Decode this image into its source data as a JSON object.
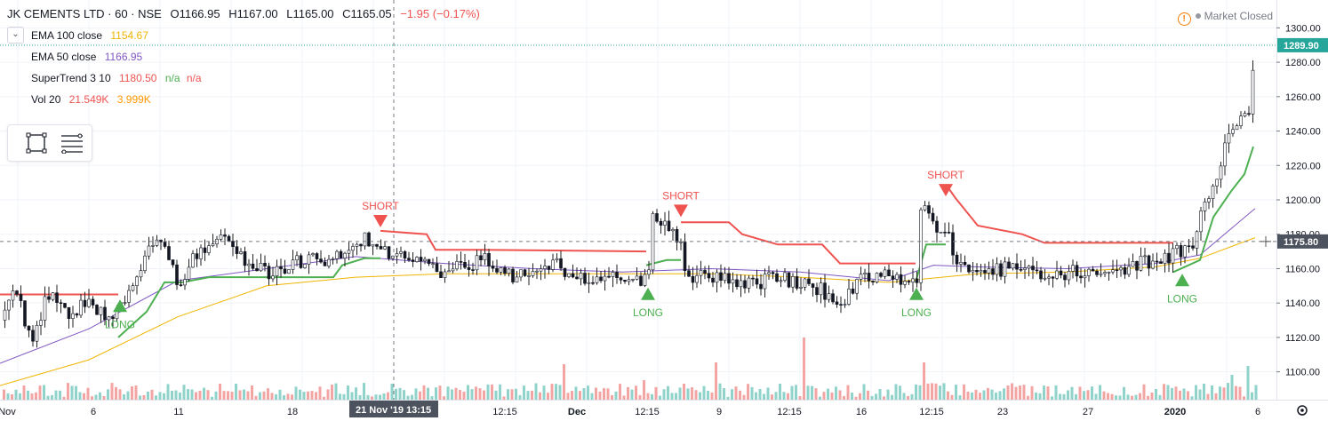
{
  "header": {
    "symbol": "JK CEMENTS LTD · 60 · NSE",
    "open": "O1166.95",
    "high": "H1167.00",
    "low": "L1165.00",
    "close": "C1165.05",
    "change": "−1.95 (−0.17%)"
  },
  "indicators": [
    {
      "name": "EMA 100 close",
      "value": "1154.67",
      "color": "#f0b400"
    },
    {
      "name": "EMA 50 close",
      "value": "1166.95",
      "color": "#7e57c2"
    },
    {
      "name": "SuperTrend 3 10",
      "value": "1180.50",
      "v2": "n/a",
      "v3": "n/a",
      "color": "#ef5350",
      "color2": "#4caf50"
    },
    {
      "name": "Vol 20",
      "value": "21.549K",
      "v2": "3.999K",
      "color": "#ef5350",
      "color2": "#ff9800"
    }
  ],
  "market_status": "Market Closed",
  "price_labels": {
    "last": "1289.90",
    "crosshair": "1175.80"
  },
  "crosshair_time": {
    "date": "21 Nov '19",
    "time": "13:15"
  },
  "colors": {
    "up": "#26a69a",
    "down": "#ef5350",
    "vol_up": "#8fd3cb",
    "vol_down": "#f3a5a3",
    "ema100": "#f0b400",
    "ema50": "#7e57c2",
    "st_up": "#4caf50",
    "st_down": "#ef5350",
    "last_price": "#26a69a",
    "crosshair_label": "#4c525e"
  },
  "chart_data": {
    "type": "candlestick",
    "y_axis": {
      "min": 1090,
      "max": 1310,
      "ticks": [
        1100,
        1120,
        1140,
        1160,
        1180,
        1200,
        1220,
        1240,
        1260,
        1280,
        1300
      ]
    },
    "x_labels": [
      "Nov",
      "6",
      "11",
      "18",
      "21 Nov '19",
      "13:15",
      "12:15",
      "Dec",
      "12:15",
      "9",
      "12:15",
      "16",
      "12:15",
      "23",
      "27",
      "2020",
      "6"
    ],
    "signals": [
      {
        "label": "LONG",
        "price": 1142
      },
      {
        "label": "SHORT",
        "price": 1184
      },
      {
        "label": "LONG",
        "price": 1149
      },
      {
        "label": "SHORT",
        "price": 1190
      },
      {
        "label": "LONG",
        "price": 1149
      },
      {
        "label": "SHORT",
        "price": 1202
      },
      {
        "label": "LONG",
        "price": 1157
      }
    ],
    "price_path": [
      [
        0,
        1130
      ],
      [
        15,
        1150
      ],
      [
        35,
        1115
      ],
      [
        50,
        1145
      ],
      [
        75,
        1135
      ],
      [
        100,
        1140
      ],
      [
        125,
        1132
      ],
      [
        140,
        1145
      ],
      [
        160,
        1162
      ],
      [
        168,
        1178
      ],
      [
        185,
        1172
      ],
      [
        200,
        1150
      ],
      [
        215,
        1165
      ],
      [
        235,
        1172
      ],
      [
        255,
        1178
      ],
      [
        275,
        1165
      ],
      [
        300,
        1158
      ],
      [
        330,
        1163
      ],
      [
        360,
        1165
      ],
      [
        390,
        1172
      ],
      [
        410,
        1178
      ],
      [
        425,
        1175
      ],
      [
        440,
        1166
      ],
      [
        470,
        1165
      ],
      [
        495,
        1158
      ],
      [
        520,
        1163
      ],
      [
        550,
        1165
      ],
      [
        575,
        1155
      ],
      [
        600,
        1158
      ],
      [
        625,
        1162
      ],
      [
        650,
        1155
      ],
      [
        680,
        1156
      ],
      [
        710,
        1155
      ],
      [
        728,
        1152
      ],
      [
        734,
        1195
      ],
      [
        750,
        1180
      ],
      [
        765,
        1178
      ],
      [
        770,
        1155
      ],
      [
        790,
        1158
      ],
      [
        810,
        1155
      ],
      [
        840,
        1150
      ],
      [
        870,
        1155
      ],
      [
        900,
        1152
      ],
      [
        920,
        1148
      ],
      [
        945,
        1140
      ],
      [
        970,
        1155
      ],
      [
        1000,
        1155
      ],
      [
        1030,
        1155
      ],
      [
        1035,
        1200
      ],
      [
        1050,
        1185
      ],
      [
        1065,
        1180
      ],
      [
        1075,
        1162
      ],
      [
        1100,
        1156
      ],
      [
        1130,
        1160
      ],
      [
        1160,
        1158
      ],
      [
        1190,
        1157
      ],
      [
        1220,
        1159
      ],
      [
        1250,
        1158
      ],
      [
        1280,
        1163
      ],
      [
        1300,
        1165
      ],
      [
        1325,
        1170
      ],
      [
        1340,
        1175
      ],
      [
        1355,
        1198
      ],
      [
        1365,
        1212
      ],
      [
        1380,
        1235
      ],
      [
        1395,
        1245
      ],
      [
        1405,
        1255
      ],
      [
        1410,
        1290
      ]
    ],
    "ema100": [
      [
        0,
        1092
      ],
      [
        100,
        1107
      ],
      [
        200,
        1132
      ],
      [
        300,
        1150
      ],
      [
        400,
        1155
      ],
      [
        500,
        1157
      ],
      [
        600,
        1157
      ],
      [
        700,
        1157
      ],
      [
        800,
        1157
      ],
      [
        900,
        1155
      ],
      [
        1000,
        1152
      ],
      [
        1100,
        1157
      ],
      [
        1200,
        1158
      ],
      [
        1300,
        1161
      ],
      [
        1350,
        1166
      ],
      [
        1412,
        1178
      ]
    ],
    "ema50": [
      [
        0,
        1105
      ],
      [
        100,
        1125
      ],
      [
        200,
        1153
      ],
      [
        300,
        1160
      ],
      [
        400,
        1167
      ],
      [
        500,
        1163
      ],
      [
        600,
        1160
      ],
      [
        700,
        1158
      ],
      [
        800,
        1160
      ],
      [
        900,
        1158
      ],
      [
        1000,
        1153
      ],
      [
        1050,
        1162
      ],
      [
        1100,
        1161
      ],
      [
        1200,
        1160
      ],
      [
        1300,
        1163
      ],
      [
        1350,
        1168
      ],
      [
        1412,
        1195
      ]
    ],
    "supertrend": [
      {
        "dir": "down",
        "points": [
          [
            0,
            1145
          ],
          [
            133,
            1145
          ]
        ]
      },
      {
        "dir": "up",
        "points": [
          [
            133,
            1120
          ],
          [
            165,
            1135
          ],
          [
            185,
            1152
          ],
          [
            205,
            1152
          ],
          [
            235,
            1155
          ],
          [
            260,
            1155
          ],
          [
            300,
            1155
          ],
          [
            375,
            1155
          ],
          [
            385,
            1162
          ],
          [
            410,
            1166
          ],
          [
            428,
            1166
          ]
        ]
      },
      {
        "dir": "down",
        "points": [
          [
            428,
            1182
          ],
          [
            480,
            1180
          ],
          [
            490,
            1171
          ],
          [
            540,
            1171
          ],
          [
            727,
            1170
          ]
        ]
      },
      {
        "dir": "up",
        "points": [
          [
            727,
            1162
          ],
          [
            750,
            1165
          ],
          [
            766,
            1165
          ]
        ]
      },
      {
        "dir": "down",
        "points": [
          [
            766,
            1187
          ],
          [
            820,
            1187
          ],
          [
            835,
            1180
          ],
          [
            875,
            1174
          ],
          [
            925,
            1174
          ],
          [
            945,
            1163
          ],
          [
            1030,
            1163
          ]
        ]
      },
      {
        "dir": "up",
        "points": [
          [
            1030,
            1152
          ],
          [
            1042,
            1174
          ],
          [
            1060,
            1174
          ],
          [
            1064,
            1174
          ]
        ]
      },
      {
        "dir": "down",
        "points": [
          [
            1064,
            1209
          ],
          [
            1075,
            1201
          ],
          [
            1100,
            1185
          ],
          [
            1150,
            1180
          ],
          [
            1175,
            1175
          ],
          [
            1320,
            1175
          ]
        ]
      },
      {
        "dir": "up",
        "points": [
          [
            1320,
            1158
          ],
          [
            1350,
            1165
          ],
          [
            1365,
            1190
          ],
          [
            1385,
            1205
          ],
          [
            1400,
            1215
          ],
          [
            1410,
            1231
          ]
        ]
      }
    ],
    "volume_spikes": [
      [
        190,
        10
      ],
      [
        408,
        8
      ],
      [
        438,
        18
      ],
      [
        632,
        40
      ],
      [
        725,
        22
      ],
      [
        770,
        18
      ],
      [
        805,
        42
      ],
      [
        905,
        70
      ],
      [
        1040,
        42
      ],
      [
        1300,
        12
      ],
      [
        1355,
        18
      ],
      [
        1385,
        28
      ],
      [
        1402,
        38
      ]
    ]
  }
}
